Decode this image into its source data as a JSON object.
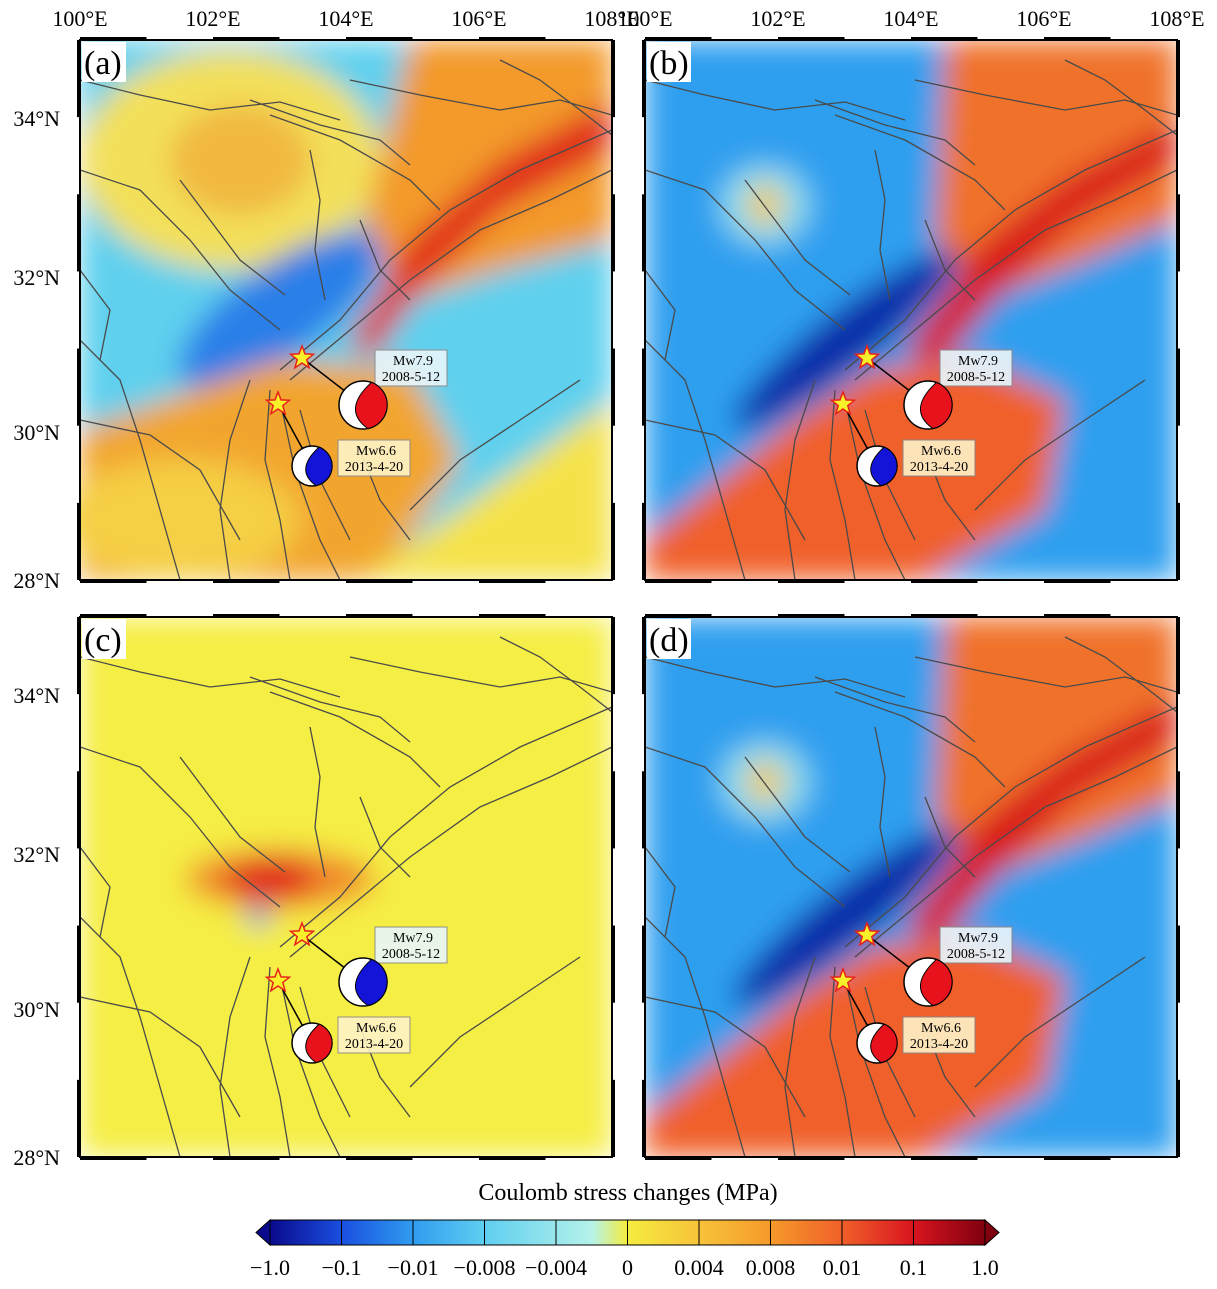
{
  "axes": {
    "lon_labels": [
      "100°E",
      "102°E",
      "104°E",
      "106°E",
      "108°E"
    ],
    "lat_labels": [
      "34°N",
      "32°N",
      "30°N",
      "28°N"
    ]
  },
  "panels": [
    {
      "label": "(a)",
      "events": [
        {
          "magnitude": "Mw7.9",
          "date": "2008-5-12",
          "color": "#e8121c"
        },
        {
          "magnitude": "Mw6.6",
          "date": "2013-4-20",
          "color": "#1414d8"
        }
      ]
    },
    {
      "label": "(b)",
      "events": [
        {
          "magnitude": "Mw7.9",
          "date": "2008-5-12",
          "color": "#e8121c"
        },
        {
          "magnitude": "Mw6.6",
          "date": "2013-4-20",
          "color": "#1414d8"
        }
      ]
    },
    {
      "label": "(c)",
      "events": [
        {
          "magnitude": "Mw7.9",
          "date": "2008-5-12",
          "color": "#1414d8"
        },
        {
          "magnitude": "Mw6.6",
          "date": "2013-4-20",
          "color": "#e8121c"
        }
      ]
    },
    {
      "label": "(d)",
      "events": [
        {
          "magnitude": "Mw7.9",
          "date": "2008-5-12",
          "color": "#e8121c"
        },
        {
          "magnitude": "Mw6.6",
          "date": "2013-4-20",
          "color": "#e8121c"
        }
      ]
    }
  ],
  "colorbar": {
    "title": "Coulomb stress changes (MPa)",
    "labels": [
      "−1.0",
      "−0.1",
      "−0.01",
      "−0.008",
      "−0.004",
      "0",
      "0.004",
      "0.008",
      "0.01",
      "0.1",
      "1.0"
    ]
  }
}
